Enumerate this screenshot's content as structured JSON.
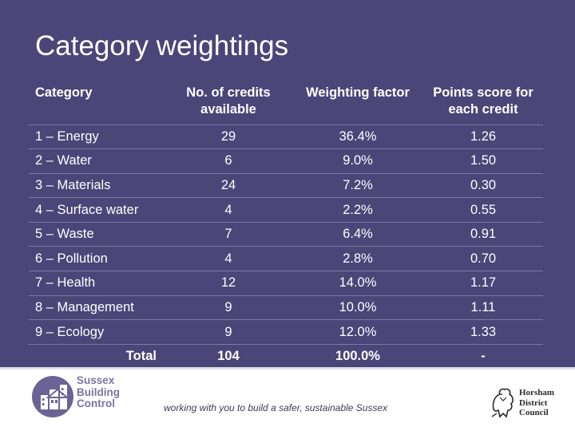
{
  "slide": {
    "title": "Category weightings"
  },
  "table": {
    "headers": {
      "category": "Category",
      "credits": "No. of credits available",
      "weighting": "Weighting factor",
      "points": "Points score for each credit"
    },
    "rows": [
      {
        "category": "1 – Energy",
        "credits": "29",
        "weighting": "36.4%",
        "points": "1.26"
      },
      {
        "category": "2 – Water",
        "credits": "6",
        "weighting": "9.0%",
        "points": "1.50"
      },
      {
        "category": "3 – Materials",
        "credits": "24",
        "weighting": "7.2%",
        "points": "0.30"
      },
      {
        "category": "4 – Surface water",
        "credits": "4",
        "weighting": "2.2%",
        "points": "0.55"
      },
      {
        "category": "5 – Waste",
        "credits": "7",
        "weighting": "6.4%",
        "points": "0.91"
      },
      {
        "category": "6 – Pollution",
        "credits": "4",
        "weighting": "2.8%",
        "points": "0.70"
      },
      {
        "category": "7 – Health",
        "credits": "12",
        "weighting": "14.0%",
        "points": "1.17"
      },
      {
        "category": "8 – Management",
        "credits": "9",
        "weighting": "10.0%",
        "points": "1.11"
      },
      {
        "category": "9 – Ecology",
        "credits": "9",
        "weighting": "12.0%",
        "points": "1.33"
      }
    ],
    "total": {
      "category": "Total",
      "credits": "104",
      "weighting": "100.0%",
      "points": "-"
    }
  },
  "footer": {
    "sbc_line1": "Sussex",
    "sbc_line2": "Building",
    "sbc_line3": "Control",
    "tagline": "working with you to build a safer, sustainable Sussex",
    "hdc_line1": "Horsham",
    "hdc_line2": "District",
    "hdc_line3": "Council"
  },
  "colors": {
    "background": "#4b4578",
    "text": "#ffffff",
    "logo": "#7b73a2"
  },
  "icons": [
    "sussex-building-control-logo",
    "horsham-lion-crest-icon"
  ]
}
